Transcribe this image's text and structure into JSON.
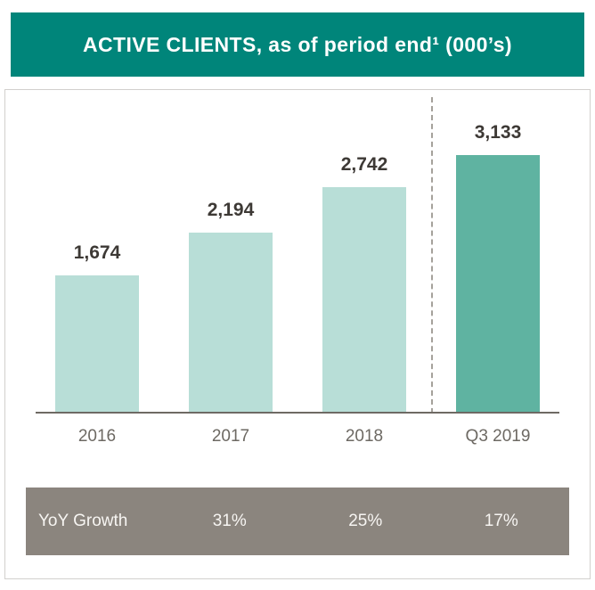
{
  "header": {
    "title": "ACTIVE CLIENTS, as of period end¹ (000’s)"
  },
  "chart_data": {
    "type": "bar",
    "title": "ACTIVE CLIENTS, as of period end¹ (000’s)",
    "categories": [
      "2016",
      "2017",
      "2018",
      "Q3 2019"
    ],
    "values": [
      1674,
      2194,
      2742,
      3133
    ],
    "value_labels": [
      "1,674",
      "2,194",
      "2,742",
      "3,133"
    ],
    "xlabel": "",
    "ylabel": "",
    "ylim": [
      0,
      3300
    ],
    "grid": false,
    "legend": "none",
    "highlight_index": 3,
    "separator_before_index": 3,
    "colors": {
      "header_bg": "#00857a",
      "bar": "#b8ded7",
      "bar_highlight": "#5fb3a1",
      "footer_bg": "#8b857e",
      "axis": "#6e6a64",
      "value_text": "#3d3935",
      "tick_text": "#6d6963"
    }
  },
  "footer": {
    "label": "YoY Growth",
    "values": [
      "",
      "31%",
      "25%",
      "17%"
    ]
  }
}
